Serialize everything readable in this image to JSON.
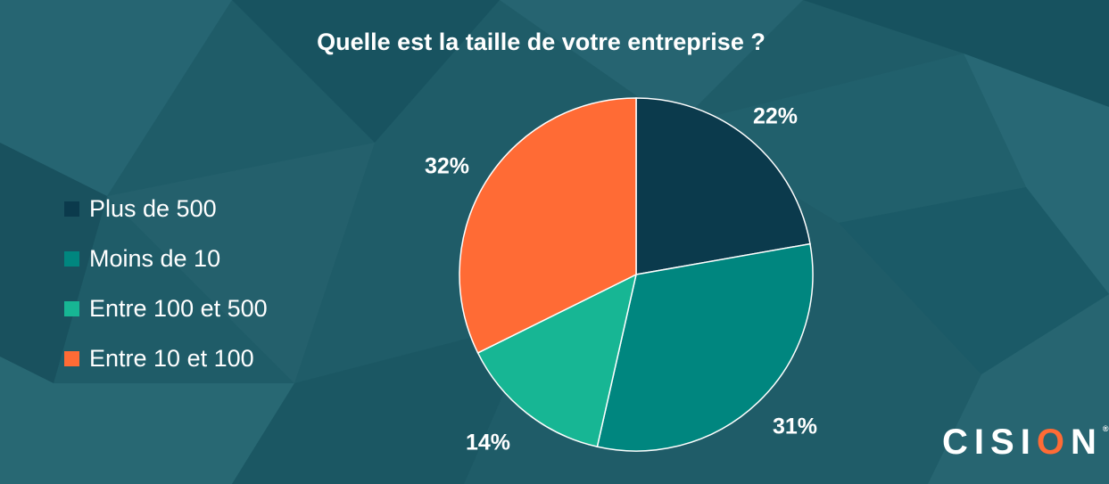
{
  "title": "Quelle est la taille de votre entreprise ?",
  "colors": {
    "background": "#1f5c68",
    "text": "#ffffff"
  },
  "chart_data": {
    "type": "pie",
    "title": "Quelle est la taille de votre entreprise ?",
    "legend_position": "left",
    "slices": [
      {
        "label": "Plus de 500",
        "value": 22,
        "display": "22%",
        "color": "#0b3a4c"
      },
      {
        "label": "Moins de 10",
        "value": 31,
        "display": "31%",
        "color": "#00867f"
      },
      {
        "label": "Entre 100 et 500",
        "value": 14,
        "display": "14%",
        "color": "#17b694"
      },
      {
        "label": "Entre 10 et 100",
        "value": 32,
        "display": "32%",
        "color": "#ff6b35"
      }
    ]
  },
  "logo": {
    "text": "CISION",
    "trademark": "®"
  }
}
